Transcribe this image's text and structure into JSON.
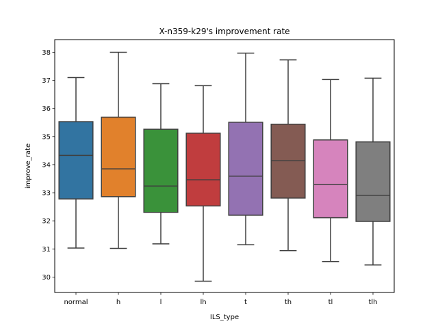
{
  "chart_data": {
    "type": "box",
    "title": "X-n359-k29's improvement rate",
    "xlabel": "ILS_type",
    "ylabel": "improve_rate",
    "ylim": [
      29.45,
      38.45
    ],
    "yticks": [
      30,
      31,
      32,
      33,
      34,
      35,
      36,
      37,
      38
    ],
    "grid": false,
    "categories": [
      "normal",
      "h",
      "l",
      "lh",
      "t",
      "th",
      "tl",
      "tlh"
    ],
    "boxes": [
      {
        "category": "normal",
        "color": "#3274a1",
        "whisker_low": 31.03,
        "q1": 32.78,
        "median": 34.33,
        "q3": 35.53,
        "whisker_high": 37.1
      },
      {
        "category": "h",
        "color": "#e1812c",
        "whisker_low": 31.02,
        "q1": 32.86,
        "median": 33.85,
        "q3": 35.69,
        "whisker_high": 38.0
      },
      {
        "category": "l",
        "color": "#3a923a",
        "whisker_low": 31.18,
        "q1": 32.3,
        "median": 33.24,
        "q3": 35.26,
        "whisker_high": 36.88
      },
      {
        "category": "lh",
        "color": "#c03d3e",
        "whisker_low": 29.85,
        "q1": 32.53,
        "median": 33.46,
        "q3": 35.12,
        "whisker_high": 36.81
      },
      {
        "category": "t",
        "color": "#9372b2",
        "whisker_low": 31.15,
        "q1": 32.2,
        "median": 33.59,
        "q3": 35.51,
        "whisker_high": 37.97
      },
      {
        "category": "th",
        "color": "#845b53",
        "whisker_low": 30.94,
        "q1": 32.81,
        "median": 34.14,
        "q3": 35.44,
        "whisker_high": 37.73
      },
      {
        "category": "tl",
        "color": "#d684bd",
        "whisker_low": 30.55,
        "q1": 32.11,
        "median": 33.3,
        "q3": 34.88,
        "whisker_high": 37.03
      },
      {
        "category": "tlh",
        "color": "#7f7f7f",
        "whisker_low": 30.43,
        "q1": 31.98,
        "median": 32.91,
        "q3": 34.81,
        "whisker_high": 37.08
      }
    ]
  }
}
